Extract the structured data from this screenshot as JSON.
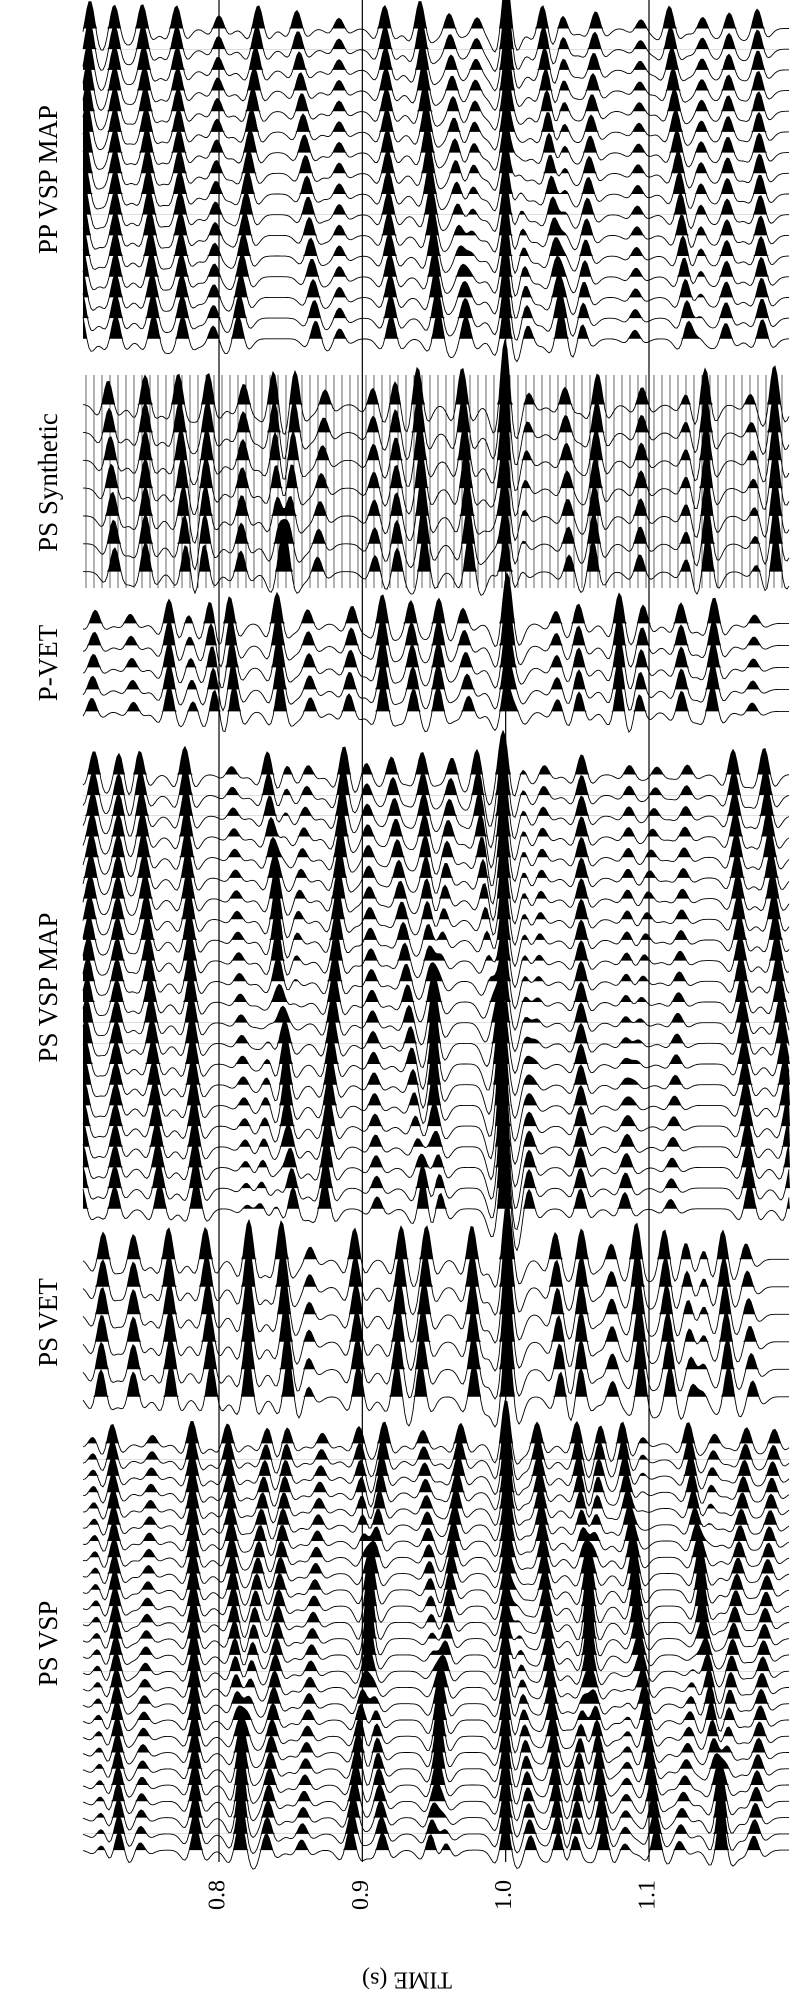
{
  "panels": [
    {
      "title": "PP VSP MAP"
    },
    {
      "title": "PS Synthetic"
    },
    {
      "title": "P-VET"
    },
    {
      "title": "PS VSP MAP"
    },
    {
      "title": "PS VET"
    },
    {
      "title": "PS  VSP"
    }
  ],
  "axis": {
    "label": "TIME (s)",
    "ticks": [
      0.8,
      0.9,
      {
        "value": 1,
        "label": "1.0"
      },
      1.1
    ]
  }
}
